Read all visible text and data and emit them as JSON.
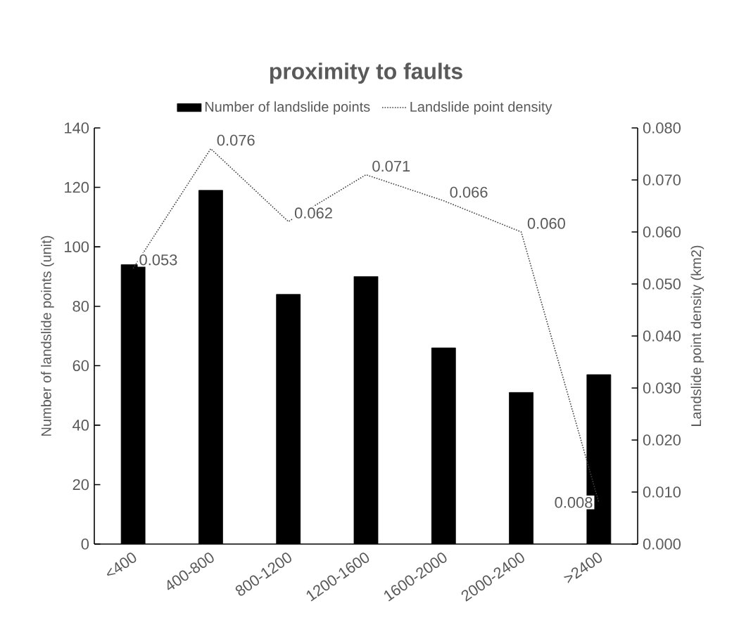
{
  "chart_data": {
    "type": "bar",
    "title": "proximity to faults",
    "ylabel": "Number of landslide points (unit)",
    "y2label": "Landslide point density (km2)",
    "categories": [
      "<400",
      "400-800",
      "800-1200",
      "1200-1600",
      "1600-2000",
      "2000-2400",
      ">2400"
    ],
    "series": [
      {
        "name": "Number of landslide points",
        "color": "#000000",
        "values": [
          94,
          119,
          84,
          90,
          66,
          51,
          57
        ]
      },
      {
        "name": "Landslide point density",
        "type": "line",
        "axis": "y2",
        "color": "#404040",
        "line_style": "dotted",
        "marker": "none",
        "values": [
          0.053,
          0.076,
          0.062,
          0.071,
          0.066,
          0.06,
          0.008
        ],
        "value_labels": [
          "0.053",
          "0.076",
          "0.062",
          "0.071",
          "0.066",
          "0.060",
          "0.008"
        ]
      }
    ],
    "ylim": [
      0,
      140
    ],
    "yticks": [
      0,
      20,
      40,
      60,
      80,
      100,
      120,
      140
    ],
    "y2lim": [
      0,
      0.08
    ],
    "y2ticks": [
      {
        "value": 0,
        "label": "0.000"
      },
      {
        "value": 0.01,
        "label": "0.010"
      },
      {
        "value": 0.02,
        "label": "0.020"
      },
      {
        "value": 0.03,
        "label": "0.030"
      },
      {
        "value": 0.04,
        "label": "0.040"
      },
      {
        "value": 0.05,
        "label": "0.050"
      },
      {
        "value": 0.06,
        "label": "0.060"
      },
      {
        "value": 0.07,
        "label": "0.070"
      },
      {
        "value": 0.08,
        "label": "0.080"
      }
    ],
    "legend": "top"
  }
}
